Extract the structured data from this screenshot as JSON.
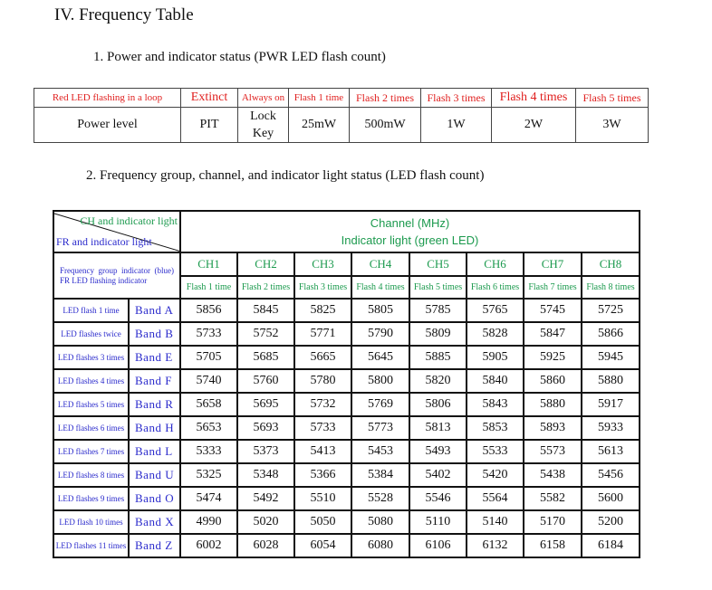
{
  "title": "IV. Frequency Table",
  "section1": {
    "heading": "1. Power and indicator status (PWR LED flash count)",
    "header": [
      "Red LED flashing in a loop",
      "Extinct",
      "Always on",
      "Flash 1 time",
      "Flash 2 times",
      "Flash 3 times",
      "Flash 4 times",
      "Flash 5 times"
    ],
    "row": [
      "Power level",
      "PIT",
      "Lock Key",
      "25mW",
      "500mW",
      "1W",
      "2W",
      "3W"
    ]
  },
  "section2": {
    "heading": "2. Frequency group, channel, and indicator light status (LED flash count)",
    "corner_top": "CH and indicator light",
    "corner_bottom": "FR and indicator light",
    "channel_title": "Channel (MHz)",
    "indicator_title": "Indicator light (green LED)",
    "group_label": "Frequency group indicator (blue) FR LED flashing indicator",
    "channels": [
      "CH1",
      "CH2",
      "CH3",
      "CH4",
      "CH5",
      "CH6",
      "CH7",
      "CH8"
    ],
    "flashes": [
      "Flash 1 time",
      "Flash 2 times",
      "Flash 3 times",
      "Flash 4 times",
      "Flash 5 times",
      "Flash 6 times",
      "Flash 7 times",
      "Flash 8 times"
    ],
    "rows": [
      {
        "led": "LED flash 1 time",
        "band": "Band A",
        "freqs": [
          "5856",
          "5845",
          "5825",
          "5805",
          "5785",
          "5765",
          "5745",
          "5725"
        ]
      },
      {
        "led": "LED flashes twice",
        "band": "Band B",
        "freqs": [
          "5733",
          "5752",
          "5771",
          "5790",
          "5809",
          "5828",
          "5847",
          "5866"
        ]
      },
      {
        "led": "LED flashes 3 times",
        "band": "Band E",
        "freqs": [
          "5705",
          "5685",
          "5665",
          "5645",
          "5885",
          "5905",
          "5925",
          "5945"
        ]
      },
      {
        "led": "LED flashes 4 times",
        "band": "Band F",
        "freqs": [
          "5740",
          "5760",
          "5780",
          "5800",
          "5820",
          "5840",
          "5860",
          "5880"
        ]
      },
      {
        "led": "LED flashes 5 times",
        "band": "Band R",
        "freqs": [
          "5658",
          "5695",
          "5732",
          "5769",
          "5806",
          "5843",
          "5880",
          "5917"
        ]
      },
      {
        "led": "LED flashes 6 times",
        "band": "Band H",
        "freqs": [
          "5653",
          "5693",
          "5733",
          "5773",
          "5813",
          "5853",
          "5893",
          "5933"
        ]
      },
      {
        "led": "LED flashes 7 times",
        "band": "Band L",
        "freqs": [
          "5333",
          "5373",
          "5413",
          "5453",
          "5493",
          "5533",
          "5573",
          "5613"
        ]
      },
      {
        "led": "LED flashes 8 times",
        "band": "Band U",
        "freqs": [
          "5325",
          "5348",
          "5366",
          "5384",
          "5402",
          "5420",
          "5438",
          "5456"
        ]
      },
      {
        "led": "LED flashes 9 times",
        "band": "Band O",
        "freqs": [
          "5474",
          "5492",
          "5510",
          "5528",
          "5546",
          "5564",
          "5582",
          "5600"
        ]
      },
      {
        "led": "LED flash 10 times",
        "band": "Band X",
        "freqs": [
          "4990",
          "5020",
          "5050",
          "5080",
          "5110",
          "5140",
          "5170",
          "5200"
        ]
      },
      {
        "led": "LED flashes 11 times",
        "band": "Band Z",
        "freqs": [
          "6002",
          "6028",
          "6054",
          "6080",
          "6106",
          "6132",
          "6158",
          "6184"
        ]
      }
    ]
  }
}
